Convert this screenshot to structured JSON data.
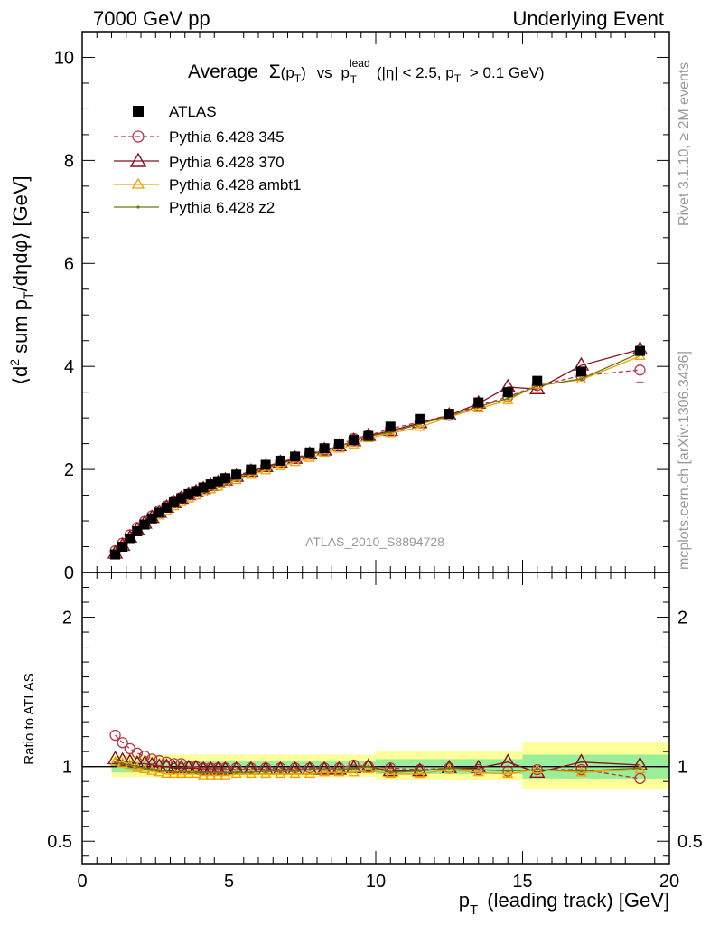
{
  "header": {
    "left": "7000 GeV pp",
    "right": "Underlying Event"
  },
  "side_labels": {
    "rivet": "Rivet 3.1.10, ≥ 2M events",
    "mcplots": "mcplots.cern.ch [arXiv:1306.3436]"
  },
  "watermark": "ATLAS_2010_S8894728",
  "colors": {
    "atlas": "#000000",
    "p345": "#b5384a",
    "p370": "#8b0e1f",
    "ambt1": "#f0a000",
    "z2": "#6b7a10",
    "band_inner": "#99ee99",
    "band_outer": "#ffff99"
  },
  "chart_data": [
    {
      "type": "line",
      "title": "Average Σ(pT) vs pT lead (|η| < 2.5, pT > 0.1 GeV)",
      "title_parts": {
        "average": "Average",
        "sigma": "Σ",
        "pt_open": "(p",
        "pt_sub": "T",
        "pt_close": ")",
        "vs": "vs",
        "p": "p",
        "lead": "lead",
        "T": "T",
        "cut_a": "(|η| < 2.5, p",
        "cut_T": "T",
        "cut_b": "> 0.1 GeV)"
      },
      "ylabel_parts": {
        "a": "⟨d",
        "sup": "2",
        "b": "sum p",
        "sub": "T",
        "c": "/dηdφ⟩ [GeV]"
      },
      "xlim": [
        0,
        20
      ],
      "ylim": [
        0,
        10.5
      ],
      "yticks": [
        0,
        2,
        4,
        6,
        8,
        10
      ],
      "grid": false,
      "legend_position": "top-left",
      "series": [
        {
          "name": "ATLAS",
          "marker": "square",
          "x": [
            1.125,
            1.375,
            1.625,
            1.875,
            2.125,
            2.375,
            2.625,
            2.875,
            3.125,
            3.375,
            3.625,
            3.875,
            4.125,
            4.375,
            4.625,
            4.875,
            5.25,
            5.75,
            6.25,
            6.75,
            7.25,
            7.75,
            8.25,
            8.75,
            9.25,
            9.75,
            10.5,
            11.5,
            12.5,
            13.5,
            14.5,
            15.5,
            17.0,
            19.0
          ],
          "values": [
            0.35,
            0.5,
            0.65,
            0.8,
            0.93,
            1.05,
            1.16,
            1.26,
            1.36,
            1.44,
            1.52,
            1.58,
            1.65,
            1.71,
            1.77,
            1.83,
            1.9,
            2.0,
            2.09,
            2.17,
            2.25,
            2.33,
            2.41,
            2.5,
            2.57,
            2.65,
            2.83,
            2.98,
            3.08,
            3.3,
            3.5,
            3.72,
            3.9,
            4.3
          ]
        },
        {
          "name": "Pythia 6.428 345",
          "marker": "circle",
          "dashed": true,
          "x": [
            1.125,
            1.375,
            1.625,
            1.875,
            2.125,
            2.375,
            2.625,
            2.875,
            3.125,
            3.375,
            3.625,
            3.875,
            4.125,
            4.375,
            4.625,
            4.875,
            5.25,
            5.75,
            6.25,
            6.75,
            7.25,
            7.75,
            8.25,
            8.75,
            9.25,
            9.75,
            10.5,
            11.5,
            12.5,
            13.5,
            14.5,
            15.5,
            17.0,
            19.0
          ],
          "values": [
            0.42,
            0.57,
            0.73,
            0.87,
            0.99,
            1.1,
            1.2,
            1.29,
            1.38,
            1.46,
            1.52,
            1.58,
            1.64,
            1.7,
            1.75,
            1.81,
            1.88,
            1.97,
            2.06,
            2.14,
            2.22,
            2.31,
            2.38,
            2.46,
            2.6,
            2.66,
            2.79,
            2.92,
            3.05,
            3.24,
            3.41,
            3.63,
            3.82,
            3.93
          ]
        },
        {
          "name": "Pythia 6.428 370",
          "marker": "triangle",
          "x": [
            1.125,
            1.375,
            1.625,
            1.875,
            2.125,
            2.375,
            2.625,
            2.875,
            3.125,
            3.375,
            3.625,
            3.875,
            4.125,
            4.375,
            4.625,
            4.875,
            5.25,
            5.75,
            6.25,
            6.75,
            7.25,
            7.75,
            8.25,
            8.75,
            9.25,
            9.75,
            10.5,
            11.5,
            12.5,
            13.5,
            14.5,
            15.5,
            17.0,
            19.0
          ],
          "values": [
            0.37,
            0.52,
            0.67,
            0.82,
            0.95,
            1.06,
            1.16,
            1.26,
            1.35,
            1.43,
            1.5,
            1.56,
            1.62,
            1.68,
            1.74,
            1.79,
            1.86,
            1.96,
            2.05,
            2.13,
            2.21,
            2.29,
            2.37,
            2.45,
            2.55,
            2.65,
            2.75,
            2.9,
            3.05,
            3.28,
            3.6,
            3.56,
            4.02,
            4.33
          ]
        },
        {
          "name": "Pythia 6.428 ambt1",
          "marker": "triangle-small",
          "x": [
            1.125,
            1.375,
            1.625,
            1.875,
            2.125,
            2.375,
            2.625,
            2.875,
            3.125,
            3.375,
            3.625,
            3.875,
            4.125,
            4.375,
            4.625,
            4.875,
            5.25,
            5.75,
            6.25,
            6.75,
            7.25,
            7.75,
            8.25,
            8.75,
            9.25,
            9.75,
            10.5,
            11.5,
            12.5,
            13.5,
            14.5,
            15.5,
            17.0,
            19.0
          ],
          "values": [
            0.36,
            0.51,
            0.66,
            0.79,
            0.91,
            1.01,
            1.1,
            1.19,
            1.28,
            1.36,
            1.43,
            1.49,
            1.55,
            1.61,
            1.66,
            1.72,
            1.79,
            1.89,
            1.98,
            2.06,
            2.14,
            2.22,
            2.32,
            2.4,
            2.48,
            2.6,
            2.7,
            2.82,
            3.02,
            3.18,
            3.34,
            3.64,
            3.74,
            4.2
          ]
        },
        {
          "name": "Pythia 6.428 z2",
          "marker": "dot",
          "x": [
            1.125,
            1.375,
            1.625,
            1.875,
            2.125,
            2.375,
            2.625,
            2.875,
            3.125,
            3.375,
            3.625,
            3.875,
            4.125,
            4.375,
            4.625,
            4.875,
            5.25,
            5.75,
            6.25,
            6.75,
            7.25,
            7.75,
            8.25,
            8.75,
            9.25,
            9.75,
            10.5,
            11.5,
            12.5,
            13.5,
            14.5,
            15.5,
            17.0,
            19.0
          ],
          "values": [
            0.36,
            0.51,
            0.66,
            0.8,
            0.92,
            1.03,
            1.13,
            1.22,
            1.31,
            1.39,
            1.46,
            1.52,
            1.58,
            1.64,
            1.7,
            1.75,
            1.83,
            1.93,
            2.02,
            2.11,
            2.19,
            2.28,
            2.36,
            2.44,
            2.55,
            2.64,
            2.72,
            2.88,
            3.04,
            3.22,
            3.38,
            3.62,
            3.76,
            4.26
          ]
        }
      ]
    },
    {
      "type": "line",
      "title": "",
      "xlabel_parts": {
        "p": "p",
        "sub": "T",
        "rest": "(leading track) [GeV]"
      },
      "ylabel": "Ratio to ATLAS",
      "xlim": [
        0,
        20
      ],
      "ylim": [
        0.35,
        2.3
      ],
      "xticks": [
        0,
        5,
        10,
        15,
        20
      ],
      "yticks": [
        0.5,
        1,
        2
      ],
      "ytick_labels": [
        "0.5",
        "1",
        "2"
      ],
      "grid": false,
      "bands": [
        {
          "x0": 1.0,
          "x1": 10.0,
          "outer": [
            0.93,
            1.08
          ],
          "inner": [
            0.96,
            1.04
          ]
        },
        {
          "x0": 10.0,
          "x1": 15.0,
          "outer": [
            0.91,
            1.1
          ],
          "inner": [
            0.95,
            1.05
          ]
        },
        {
          "x0": 15.0,
          "x1": 20.0,
          "outer": [
            0.85,
            1.16
          ],
          "inner": [
            0.92,
            1.08
          ]
        }
      ],
      "series": [
        {
          "name": "Pythia 6.428 345",
          "x": [
            1.125,
            1.375,
            1.625,
            1.875,
            2.125,
            2.375,
            2.625,
            2.875,
            3.125,
            3.375,
            3.625,
            3.875,
            4.125,
            4.375,
            4.625,
            4.875,
            5.25,
            5.75,
            6.25,
            6.75,
            7.25,
            7.75,
            8.25,
            8.75,
            9.25,
            9.75,
            10.5,
            11.5,
            12.5,
            13.5,
            14.5,
            15.5,
            17.0,
            19.0
          ],
          "values": [
            1.21,
            1.16,
            1.12,
            1.09,
            1.07,
            1.05,
            1.04,
            1.03,
            1.02,
            1.02,
            1.0,
            1.0,
            0.99,
            0.99,
            0.99,
            0.99,
            0.99,
            0.99,
            0.99,
            0.99,
            0.99,
            0.99,
            0.99,
            0.99,
            1.01,
            1.0,
            0.99,
            0.98,
            0.99,
            0.98,
            0.97,
            0.98,
            0.98,
            0.92
          ]
        },
        {
          "name": "Pythia 6.428 370",
          "x": [
            1.125,
            1.375,
            1.625,
            1.875,
            2.125,
            2.375,
            2.625,
            2.875,
            3.125,
            3.375,
            3.625,
            3.875,
            4.125,
            4.375,
            4.625,
            4.875,
            5.25,
            5.75,
            6.25,
            6.75,
            7.25,
            7.75,
            8.25,
            8.75,
            9.25,
            9.75,
            10.5,
            11.5,
            12.5,
            13.5,
            14.5,
            15.5,
            17.0,
            19.0
          ],
          "values": [
            1.05,
            1.04,
            1.03,
            1.02,
            1.02,
            1.01,
            1.0,
            1.0,
            0.99,
            0.99,
            0.99,
            0.99,
            0.98,
            0.98,
            0.98,
            0.98,
            0.98,
            0.98,
            0.98,
            0.98,
            0.98,
            0.98,
            0.98,
            0.98,
            0.99,
            1.0,
            0.97,
            0.97,
            0.99,
            0.99,
            1.03,
            0.96,
            1.03,
            1.01
          ]
        },
        {
          "name": "Pythia 6.428 ambt1",
          "x": [
            1.125,
            1.375,
            1.625,
            1.875,
            2.125,
            2.375,
            2.625,
            2.875,
            3.125,
            3.375,
            3.625,
            3.875,
            4.125,
            4.375,
            4.625,
            4.875,
            5.25,
            5.75,
            6.25,
            6.75,
            7.25,
            7.75,
            8.25,
            8.75,
            9.25,
            9.75,
            10.5,
            11.5,
            12.5,
            13.5,
            14.5,
            15.5,
            17.0,
            19.0
          ],
          "values": [
            1.03,
            1.02,
            1.01,
            0.99,
            0.98,
            0.97,
            0.96,
            0.95,
            0.95,
            0.95,
            0.95,
            0.95,
            0.94,
            0.94,
            0.94,
            0.94,
            0.95,
            0.95,
            0.95,
            0.95,
            0.95,
            0.95,
            0.96,
            0.96,
            0.96,
            0.98,
            0.95,
            0.95,
            0.98,
            0.96,
            0.95,
            0.98,
            0.96,
            0.98
          ]
        },
        {
          "name": "Pythia 6.428 z2",
          "x": [
            1.125,
            1.375,
            1.625,
            1.875,
            2.125,
            2.375,
            2.625,
            2.875,
            3.125,
            3.375,
            3.625,
            3.875,
            4.125,
            4.375,
            4.625,
            4.875,
            5.25,
            5.75,
            6.25,
            6.75,
            7.25,
            7.75,
            8.25,
            8.75,
            9.25,
            9.75,
            10.5,
            11.5,
            12.5,
            13.5,
            14.5,
            15.5,
            17.0,
            19.0
          ],
          "values": [
            1.03,
            1.02,
            1.01,
            1.0,
            0.99,
            0.98,
            0.97,
            0.97,
            0.96,
            0.97,
            0.96,
            0.96,
            0.96,
            0.96,
            0.96,
            0.96,
            0.96,
            0.96,
            0.97,
            0.97,
            0.97,
            0.98,
            0.98,
            0.98,
            0.99,
            1.0,
            0.96,
            0.97,
            0.99,
            0.98,
            0.97,
            0.98,
            0.97,
            0.99
          ]
        }
      ]
    }
  ]
}
